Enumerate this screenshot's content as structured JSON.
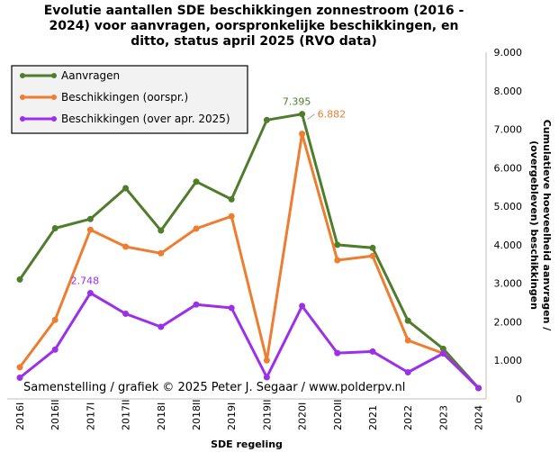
{
  "chart_data": {
    "type": "line",
    "title_lines": [
      "Evolutie aantallen SDE beschikkingen zonnestroom (2016 -",
      "2024) voor aanvragen, oorspronkelijke beschikkingen, en",
      "ditto, status april 2025 (RVO data)"
    ],
    "xlabel": "SDE regeling",
    "ylabel_lines": [
      "Cumulatieve hoeveelheid aanvragen /",
      "(overgebleven) beschikkingen"
    ],
    "categories": [
      "2016I",
      "2016II",
      "2017I",
      "2017II",
      "2018I",
      "2018II",
      "2019I",
      "2019II",
      "2020I",
      "2020II",
      "2021",
      "2022",
      "2023",
      "2024"
    ],
    "ylim": [
      0,
      9000
    ],
    "yticks": [
      "0",
      "1.000",
      "2.000",
      "3.000",
      "4.000",
      "5.000",
      "6.000",
      "7.000",
      "8.000",
      "9.000"
    ],
    "series": [
      {
        "name": "Aanvragen",
        "color": "#4f7d2c",
        "values": [
          3100,
          4430,
          4670,
          5470,
          4370,
          5640,
          5180,
          7240,
          7395,
          4000,
          3920,
          2030,
          1300,
          280
        ]
      },
      {
        "name": "Beschikkingen (oorspr.)",
        "color": "#ed7d31",
        "values": [
          820,
          2050,
          4390,
          3950,
          3780,
          4420,
          4740,
          1000,
          6882,
          3600,
          3710,
          1520,
          1180,
          280
        ]
      },
      {
        "name": "Beschikkingen (over apr. 2025)",
        "color": "#9b30e8",
        "values": [
          550,
          1280,
          2748,
          2210,
          1870,
          2450,
          2360,
          560,
          2410,
          1190,
          1230,
          690,
          1180,
          280
        ]
      }
    ],
    "annotations": [
      {
        "text": "7.395",
        "series": 0,
        "index": 8,
        "color": "#4f7d2c"
      },
      {
        "text": "6.882",
        "series": 1,
        "index": 8,
        "color": "#ed7d31"
      },
      {
        "text": "2.748",
        "series": 2,
        "index": 2,
        "color": "#9b30e8"
      }
    ],
    "credit": "Samenstelling  / grafiek © 2025 Peter J. Segaar / www.polderpv.nl"
  }
}
